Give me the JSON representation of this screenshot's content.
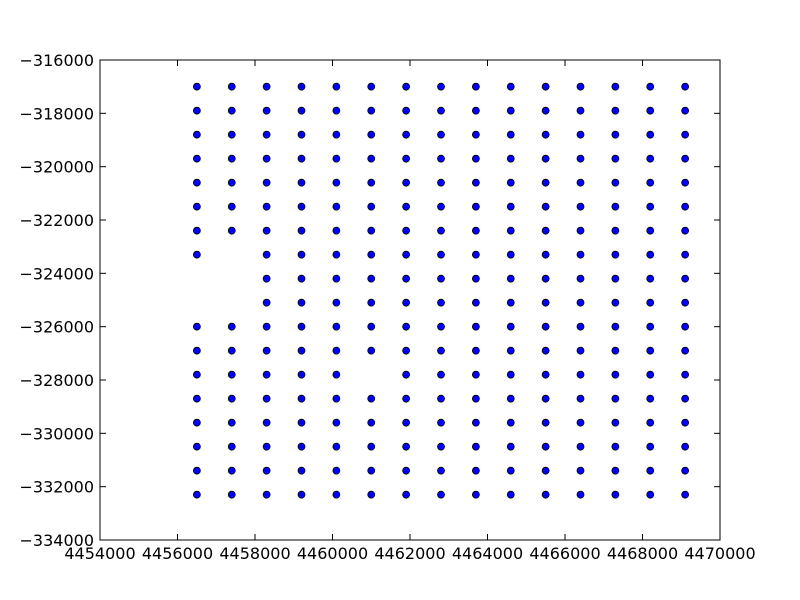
{
  "chart_data": {
    "type": "scatter",
    "title": "",
    "xlabel": "",
    "ylabel": "",
    "xlim": [
      4454000,
      4470000
    ],
    "ylim": [
      -334000,
      -316000
    ],
    "xticks": [
      4454000,
      4456000,
      4458000,
      4460000,
      4462000,
      4464000,
      4466000,
      4468000,
      4470000
    ],
    "yticks": [
      -334000,
      -332000,
      -330000,
      -328000,
      -326000,
      -324000,
      -322000,
      -320000,
      -318000,
      -316000
    ],
    "xtick_labels": [
      "4454000",
      "4456000",
      "4458000",
      "4460000",
      "4462000",
      "4464000",
      "4466000",
      "4468000",
      "4470000"
    ],
    "ytick_labels": [
      "−334000",
      "−332000",
      "−330000",
      "−328000",
      "−326000",
      "−324000",
      "−322000",
      "−320000",
      "−318000",
      "−316000"
    ],
    "grid": false,
    "marker_color": "#0000ff",
    "marker_edge_color": "#000000",
    "points": [
      [
        4456500,
        -317000
      ],
      [
        4457400,
        -317000
      ],
      [
        4458300,
        -317000
      ],
      [
        4459200,
        -317000
      ],
      [
        4460100,
        -317000
      ],
      [
        4461000,
        -317000
      ],
      [
        4461900,
        -317000
      ],
      [
        4462800,
        -317000
      ],
      [
        4463700,
        -317000
      ],
      [
        4464600,
        -317000
      ],
      [
        4465500,
        -317000
      ],
      [
        4466400,
        -317000
      ],
      [
        4467300,
        -317000
      ],
      [
        4468200,
        -317000
      ],
      [
        4469100,
        -317000
      ],
      [
        4456500,
        -317900
      ],
      [
        4457400,
        -317900
      ],
      [
        4458300,
        -317900
      ],
      [
        4459200,
        -317900
      ],
      [
        4460100,
        -317900
      ],
      [
        4461000,
        -317900
      ],
      [
        4461900,
        -317900
      ],
      [
        4462800,
        -317900
      ],
      [
        4463700,
        -317900
      ],
      [
        4464600,
        -317900
      ],
      [
        4465500,
        -317900
      ],
      [
        4466400,
        -317900
      ],
      [
        4467300,
        -317900
      ],
      [
        4468200,
        -317900
      ],
      [
        4469100,
        -317900
      ],
      [
        4456500,
        -318800
      ],
      [
        4457400,
        -318800
      ],
      [
        4458300,
        -318800
      ],
      [
        4459200,
        -318800
      ],
      [
        4460100,
        -318800
      ],
      [
        4461000,
        -318800
      ],
      [
        4461900,
        -318800
      ],
      [
        4462800,
        -318800
      ],
      [
        4463700,
        -318800
      ],
      [
        4464600,
        -318800
      ],
      [
        4465500,
        -318800
      ],
      [
        4466400,
        -318800
      ],
      [
        4467300,
        -318800
      ],
      [
        4468200,
        -318800
      ],
      [
        4469100,
        -318800
      ],
      [
        4456500,
        -319700
      ],
      [
        4457400,
        -319700
      ],
      [
        4458300,
        -319700
      ],
      [
        4459200,
        -319700
      ],
      [
        4460100,
        -319700
      ],
      [
        4461000,
        -319700
      ],
      [
        4461900,
        -319700
      ],
      [
        4462800,
        -319700
      ],
      [
        4463700,
        -319700
      ],
      [
        4464600,
        -319700
      ],
      [
        4465500,
        -319700
      ],
      [
        4466400,
        -319700
      ],
      [
        4467300,
        -319700
      ],
      [
        4468200,
        -319700
      ],
      [
        4469100,
        -319700
      ],
      [
        4456500,
        -320600
      ],
      [
        4457400,
        -320600
      ],
      [
        4458300,
        -320600
      ],
      [
        4459200,
        -320600
      ],
      [
        4460100,
        -320600
      ],
      [
        4461000,
        -320600
      ],
      [
        4461900,
        -320600
      ],
      [
        4462800,
        -320600
      ],
      [
        4463700,
        -320600
      ],
      [
        4464600,
        -320600
      ],
      [
        4465500,
        -320600
      ],
      [
        4466400,
        -320600
      ],
      [
        4467300,
        -320600
      ],
      [
        4468200,
        -320600
      ],
      [
        4469100,
        -320600
      ],
      [
        4456500,
        -321500
      ],
      [
        4457400,
        -321500
      ],
      [
        4458300,
        -321500
      ],
      [
        4459200,
        -321500
      ],
      [
        4460100,
        -321500
      ],
      [
        4461000,
        -321500
      ],
      [
        4461900,
        -321500
      ],
      [
        4462800,
        -321500
      ],
      [
        4463700,
        -321500
      ],
      [
        4464600,
        -321500
      ],
      [
        4465500,
        -321500
      ],
      [
        4466400,
        -321500
      ],
      [
        4467300,
        -321500
      ],
      [
        4468200,
        -321500
      ],
      [
        4469100,
        -321500
      ],
      [
        4456500,
        -322400
      ],
      [
        4457400,
        -322400
      ],
      [
        4458300,
        -322400
      ],
      [
        4459200,
        -322400
      ],
      [
        4460100,
        -322400
      ],
      [
        4461000,
        -322400
      ],
      [
        4461900,
        -322400
      ],
      [
        4462800,
        -322400
      ],
      [
        4463700,
        -322400
      ],
      [
        4464600,
        -322400
      ],
      [
        4465500,
        -322400
      ],
      [
        4466400,
        -322400
      ],
      [
        4467300,
        -322400
      ],
      [
        4468200,
        -322400
      ],
      [
        4469100,
        -322400
      ],
      [
        4456500,
        -323300
      ],
      [
        4458300,
        -323300
      ],
      [
        4459200,
        -323300
      ],
      [
        4460100,
        -323300
      ],
      [
        4461000,
        -323300
      ],
      [
        4461900,
        -323300
      ],
      [
        4462800,
        -323300
      ],
      [
        4463700,
        -323300
      ],
      [
        4464600,
        -323300
      ],
      [
        4465500,
        -323300
      ],
      [
        4466400,
        -323300
      ],
      [
        4467300,
        -323300
      ],
      [
        4468200,
        -323300
      ],
      [
        4469100,
        -323300
      ],
      [
        4458300,
        -324200
      ],
      [
        4459200,
        -324200
      ],
      [
        4460100,
        -324200
      ],
      [
        4461000,
        -324200
      ],
      [
        4461900,
        -324200
      ],
      [
        4462800,
        -324200
      ],
      [
        4463700,
        -324200
      ],
      [
        4464600,
        -324200
      ],
      [
        4465500,
        -324200
      ],
      [
        4466400,
        -324200
      ],
      [
        4467300,
        -324200
      ],
      [
        4468200,
        -324200
      ],
      [
        4469100,
        -324200
      ],
      [
        4458300,
        -325100
      ],
      [
        4459200,
        -325100
      ],
      [
        4460100,
        -325100
      ],
      [
        4461000,
        -325100
      ],
      [
        4461900,
        -325100
      ],
      [
        4462800,
        -325100
      ],
      [
        4463700,
        -325100
      ],
      [
        4464600,
        -325100
      ],
      [
        4465500,
        -325100
      ],
      [
        4466400,
        -325100
      ],
      [
        4467300,
        -325100
      ],
      [
        4468200,
        -325100
      ],
      [
        4469100,
        -325100
      ],
      [
        4456500,
        -326000
      ],
      [
        4457400,
        -326000
      ],
      [
        4458300,
        -326000
      ],
      [
        4459200,
        -326000
      ],
      [
        4460100,
        -326000
      ],
      [
        4461000,
        -326000
      ],
      [
        4461900,
        -326000
      ],
      [
        4462800,
        -326000
      ],
      [
        4463700,
        -326000
      ],
      [
        4464600,
        -326000
      ],
      [
        4465500,
        -326000
      ],
      [
        4466400,
        -326000
      ],
      [
        4467300,
        -326000
      ],
      [
        4468200,
        -326000
      ],
      [
        4469100,
        -326000
      ],
      [
        4456500,
        -326900
      ],
      [
        4457400,
        -326900
      ],
      [
        4458300,
        -326900
      ],
      [
        4459200,
        -326900
      ],
      [
        4460100,
        -326900
      ],
      [
        4461000,
        -326900
      ],
      [
        4461900,
        -326900
      ],
      [
        4462800,
        -326900
      ],
      [
        4463700,
        -326900
      ],
      [
        4464600,
        -326900
      ],
      [
        4465500,
        -326900
      ],
      [
        4466400,
        -326900
      ],
      [
        4467300,
        -326900
      ],
      [
        4468200,
        -326900
      ],
      [
        4469100,
        -326900
      ],
      [
        4456500,
        -327800
      ],
      [
        4457400,
        -327800
      ],
      [
        4458300,
        -327800
      ],
      [
        4459200,
        -327800
      ],
      [
        4460100,
        -327800
      ],
      [
        4461900,
        -327800
      ],
      [
        4462800,
        -327800
      ],
      [
        4463700,
        -327800
      ],
      [
        4464600,
        -327800
      ],
      [
        4465500,
        -327800
      ],
      [
        4466400,
        -327800
      ],
      [
        4467300,
        -327800
      ],
      [
        4468200,
        -327800
      ],
      [
        4469100,
        -327800
      ],
      [
        4456500,
        -328700
      ],
      [
        4457400,
        -328700
      ],
      [
        4458300,
        -328700
      ],
      [
        4459200,
        -328700
      ],
      [
        4460100,
        -328700
      ],
      [
        4461000,
        -328700
      ],
      [
        4461900,
        -328700
      ],
      [
        4462800,
        -328700
      ],
      [
        4463700,
        -328700
      ],
      [
        4464600,
        -328700
      ],
      [
        4465500,
        -328700
      ],
      [
        4466400,
        -328700
      ],
      [
        4467300,
        -328700
      ],
      [
        4468200,
        -328700
      ],
      [
        4469100,
        -328700
      ],
      [
        4456500,
        -329600
      ],
      [
        4457400,
        -329600
      ],
      [
        4458300,
        -329600
      ],
      [
        4459200,
        -329600
      ],
      [
        4460100,
        -329600
      ],
      [
        4461000,
        -329600
      ],
      [
        4461900,
        -329600
      ],
      [
        4462800,
        -329600
      ],
      [
        4463700,
        -329600
      ],
      [
        4464600,
        -329600
      ],
      [
        4465500,
        -329600
      ],
      [
        4466400,
        -329600
      ],
      [
        4467300,
        -329600
      ],
      [
        4468200,
        -329600
      ],
      [
        4469100,
        -329600
      ],
      [
        4456500,
        -330500
      ],
      [
        4457400,
        -330500
      ],
      [
        4458300,
        -330500
      ],
      [
        4459200,
        -330500
      ],
      [
        4460100,
        -330500
      ],
      [
        4461000,
        -330500
      ],
      [
        4461900,
        -330500
      ],
      [
        4462800,
        -330500
      ],
      [
        4463700,
        -330500
      ],
      [
        4464600,
        -330500
      ],
      [
        4465500,
        -330500
      ],
      [
        4466400,
        -330500
      ],
      [
        4467300,
        -330500
      ],
      [
        4468200,
        -330500
      ],
      [
        4469100,
        -330500
      ],
      [
        4456500,
        -331400
      ],
      [
        4457400,
        -331400
      ],
      [
        4458300,
        -331400
      ],
      [
        4459200,
        -331400
      ],
      [
        4460100,
        -331400
      ],
      [
        4461000,
        -331400
      ],
      [
        4461900,
        -331400
      ],
      [
        4462800,
        -331400
      ],
      [
        4463700,
        -331400
      ],
      [
        4464600,
        -331400
      ],
      [
        4465500,
        -331400
      ],
      [
        4466400,
        -331400
      ],
      [
        4467300,
        -331400
      ],
      [
        4468200,
        -331400
      ],
      [
        4469100,
        -331400
      ],
      [
        4456500,
        -332300
      ],
      [
        4457400,
        -332300
      ],
      [
        4458300,
        -332300
      ],
      [
        4459200,
        -332300
      ],
      [
        4460100,
        -332300
      ],
      [
        4461000,
        -332300
      ],
      [
        4461900,
        -332300
      ],
      [
        4462800,
        -332300
      ],
      [
        4463700,
        -332300
      ],
      [
        4464600,
        -332300
      ],
      [
        4465500,
        -332300
      ],
      [
        4466400,
        -332300
      ],
      [
        4467300,
        -332300
      ],
      [
        4468200,
        -332300
      ],
      [
        4469100,
        -332300
      ]
    ]
  }
}
